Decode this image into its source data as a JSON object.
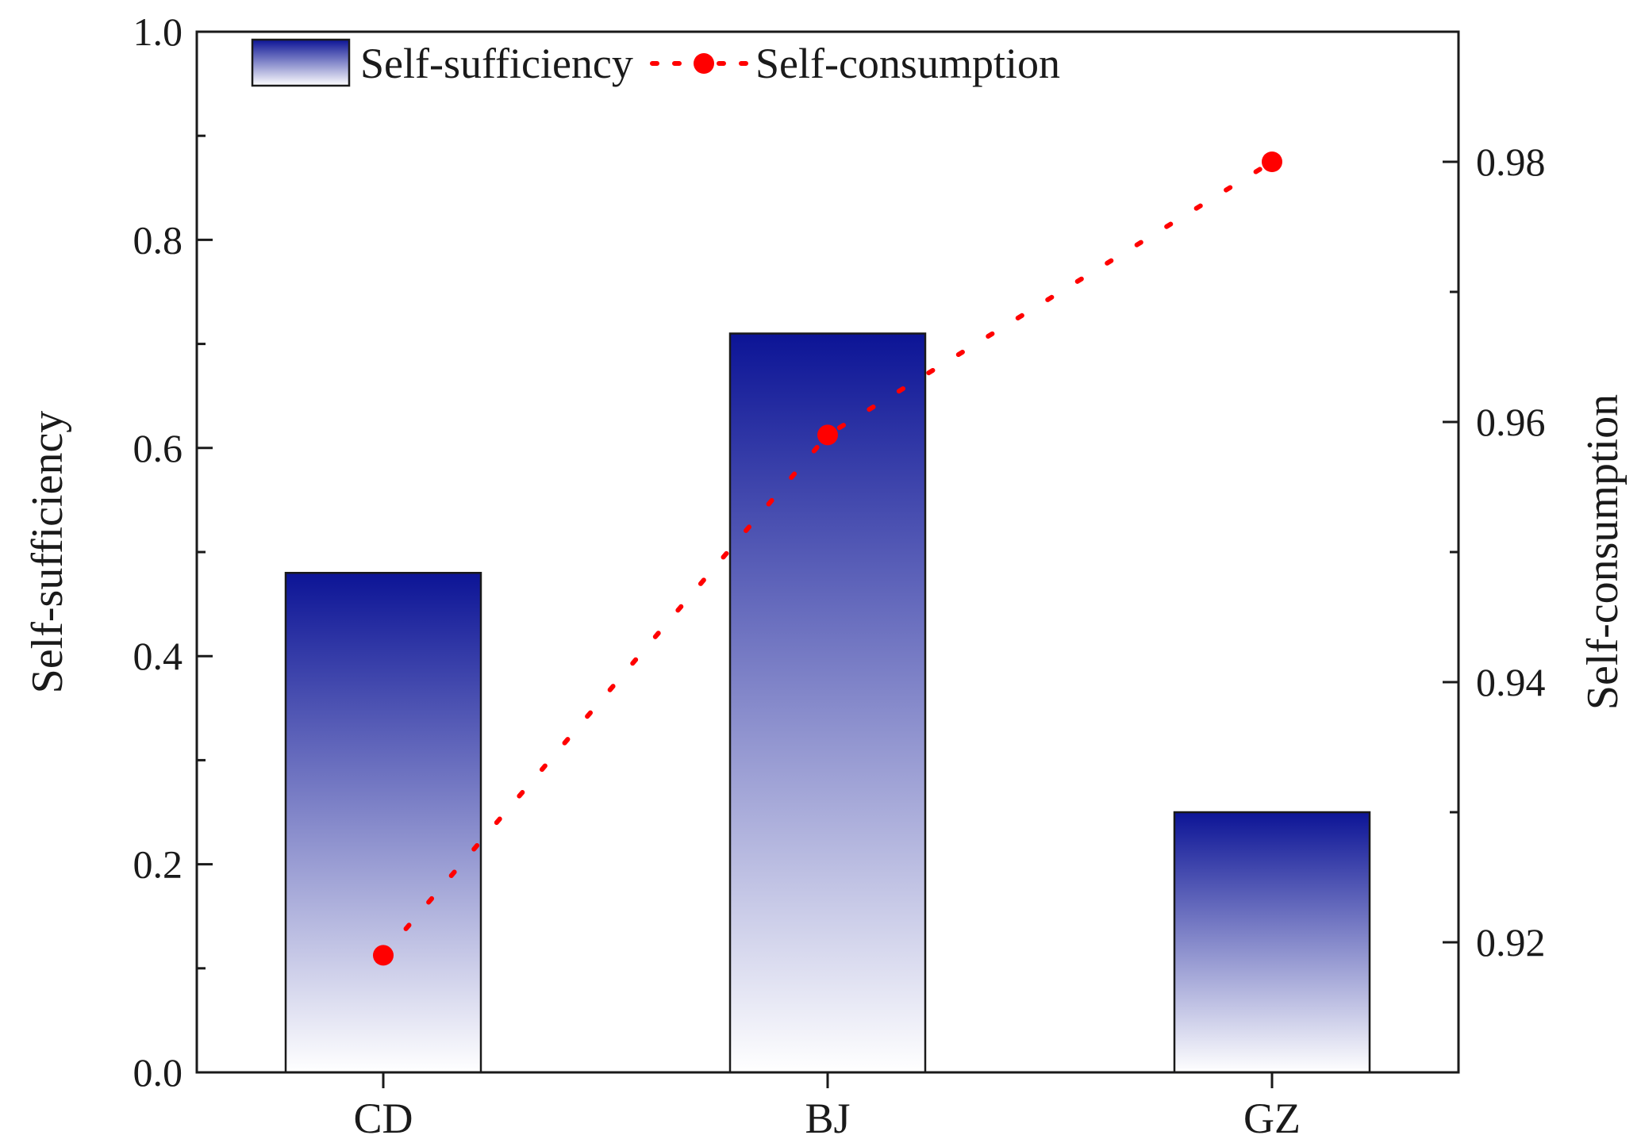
{
  "chart_data": {
    "type": "bar",
    "categories": [
      "CD",
      "BJ",
      "GZ"
    ],
    "series": [
      {
        "name": "Self-sufficiency",
        "type": "bar",
        "axis": "left",
        "values": [
          0.48,
          0.71,
          0.25
        ]
      },
      {
        "name": "Self-consumption",
        "type": "line",
        "axis": "right",
        "values": [
          0.919,
          0.959,
          0.98
        ]
      }
    ],
    "ylabel": "Self-sufficiency",
    "ylabel_right": "Self-consumption",
    "ylim": [
      0,
      1.0
    ],
    "ylim_right": [
      0.91,
      0.99
    ],
    "yticks": [
      "0.0",
      "0.2",
      "0.4",
      "0.6",
      "0.8",
      "1.0"
    ],
    "yticks_right": [
      "0.92",
      "0.94",
      "0.96",
      "0.98"
    ],
    "legend_placement": "top-left",
    "grid": false,
    "colors": {
      "bar_top": "#0c1496",
      "bar_bottom": "#ffffff",
      "line": "#ff0000",
      "axis": "#1a1a1a"
    }
  }
}
